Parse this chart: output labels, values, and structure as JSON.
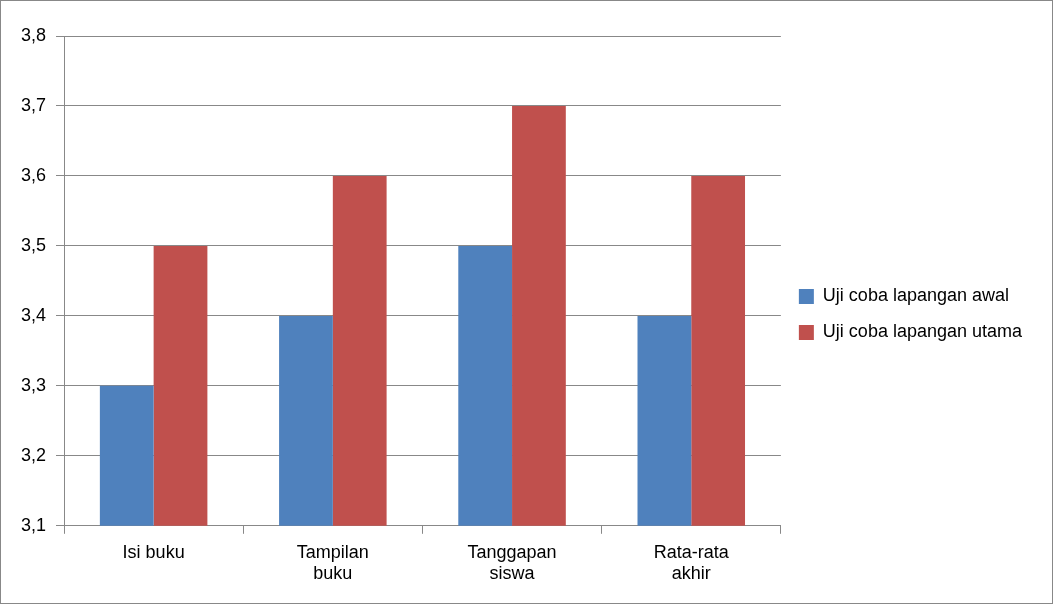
{
  "chart_data": {
    "type": "bar",
    "categories": [
      "Isi buku",
      "Tampilan buku",
      "Tanggapan siswa",
      "Rata-rata akhir"
    ],
    "series": [
      {
        "name": "Uji coba lapangan awal",
        "color": "#4f81bd",
        "values": [
          3.3,
          3.4,
          3.5,
          3.4
        ]
      },
      {
        "name": "Uji coba lapangan utama",
        "color": "#c0504d",
        "values": [
          3.5,
          3.6,
          3.7,
          3.6
        ]
      }
    ],
    "ylim": [
      3.1,
      3.8
    ],
    "yticks": [
      {
        "value": 3.1,
        "label": "3,1"
      },
      {
        "value": 3.2,
        "label": "3,2"
      },
      {
        "value": 3.3,
        "label": "3,3"
      },
      {
        "value": 3.4,
        "label": "3,4"
      },
      {
        "value": 3.5,
        "label": "3,5"
      },
      {
        "value": 3.6,
        "label": "3,6"
      },
      {
        "value": 3.7,
        "label": "3,7"
      },
      {
        "value": 3.8,
        "label": "3,8"
      }
    ],
    "grid": "y",
    "legend": "right"
  }
}
